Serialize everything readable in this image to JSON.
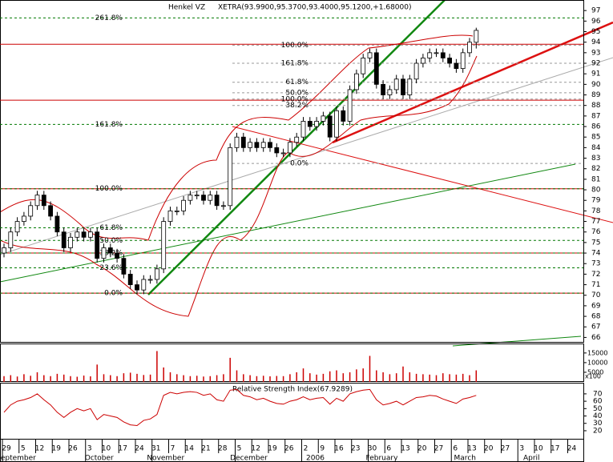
{
  "chart_data": {
    "type": "candlestick",
    "title": "Henkel VZ",
    "subtitle": "XETRA(93.9900,95.3700,93.4000,95.1200,+1.68000)",
    "open": [
      74,
      74.5,
      76,
      77,
      77.5,
      78.5,
      79.5,
      78.5,
      77.5,
      76,
      74.5,
      75.5,
      76,
      75.5,
      76,
      73.5,
      74.5,
      74,
      73.5,
      72,
      71,
      70.5,
      71.5,
      71.5,
      72.5,
      77,
      78,
      78,
      79,
      79.5,
      79.5,
      79,
      79.5,
      78.5,
      78.5,
      84,
      85,
      84,
      84.5,
      84,
      84.5,
      84,
      83.5,
      83.5,
      84.5,
      85,
      86.5,
      86,
      86.5,
      87,
      85,
      87.5,
      86.5,
      89.5,
      91,
      92.5,
      93,
      90,
      89,
      89.5,
      90.5,
      89,
      90.5,
      92,
      92.5,
      93,
      93,
      92.5,
      92,
      91.5,
      93,
      93.99
    ],
    "high": [
      74.9,
      76.4,
      77.4,
      77.9,
      78.9,
      79.9,
      79.9,
      78.9,
      77.9,
      76.4,
      75.9,
      76.4,
      76.4,
      76.4,
      76.4,
      74.9,
      74.9,
      74.4,
      73.9,
      72.4,
      71.4,
      71.9,
      71.9,
      72.9,
      77.4,
      78.4,
      78.4,
      79.4,
      79.9,
      79.9,
      79.9,
      79.9,
      79.9,
      78.9,
      84.4,
      85.4,
      85.4,
      84.9,
      84.9,
      84.9,
      84.9,
      84.4,
      83.9,
      84.9,
      85.4,
      86.9,
      86.9,
      86.9,
      87.4,
      87.4,
      87.9,
      87.9,
      89.9,
      91.4,
      92.9,
      93.4,
      93.4,
      90.4,
      89.9,
      90.9,
      90.9,
      90.9,
      92.4,
      92.9,
      93.4,
      93.4,
      93.4,
      92.9,
      92.4,
      93.4,
      94.4,
      95.37
    ],
    "low": [
      73.6,
      74.1,
      75.6,
      76.6,
      77.1,
      78.1,
      78.1,
      77.1,
      75.6,
      74.1,
      74.1,
      75.1,
      75.1,
      75.1,
      73.1,
      73.1,
      73.6,
      73.1,
      71.6,
      70.6,
      70.1,
      70.1,
      71.1,
      71.1,
      72.1,
      76.6,
      77.6,
      77.6,
      78.6,
      79.1,
      78.6,
      78.6,
      78.1,
      78.1,
      78.1,
      83.6,
      83.6,
      83.6,
      83.6,
      83.6,
      83.6,
      83.1,
      83.1,
      83.1,
      84.1,
      84.6,
      85.6,
      85.6,
      86.1,
      84.6,
      84.6,
      86.1,
      86.1,
      89.1,
      90.6,
      92.1,
      89.6,
      88.6,
      88.6,
      89.1,
      88.6,
      88.6,
      90.1,
      91.6,
      92.1,
      92.6,
      92.1,
      91.6,
      91.1,
      91.1,
      92.6,
      93.4
    ],
    "close": [
      74.5,
      76,
      77,
      77.5,
      78.5,
      79.5,
      78.5,
      77.5,
      76,
      74.5,
      75.5,
      76,
      75.5,
      76,
      73.5,
      74.5,
      74,
      73.5,
      72,
      71,
      70.5,
      71.5,
      71.5,
      72.5,
      77,
      78,
      78,
      79,
      79.5,
      79.5,
      79,
      79.5,
      78.5,
      78.5,
      84,
      85,
      84,
      84.5,
      84,
      84.5,
      84,
      83.5,
      83.5,
      84.5,
      85,
      86.5,
      86,
      86.5,
      87,
      85,
      87.5,
      86.5,
      89.5,
      91,
      92.5,
      93,
      90,
      89,
      89.5,
      90.5,
      89,
      90.5,
      92,
      92.5,
      93,
      93,
      92.5,
      92,
      91.5,
      93,
      94,
      95.12
    ],
    "ylim": [
      65.5,
      98
    ],
    "yticks": [
      66,
      67,
      68,
      69,
      70,
      71,
      72,
      73,
      74,
      75,
      76,
      77,
      78,
      79,
      80,
      81,
      82,
      83,
      84,
      85,
      86,
      87,
      88,
      89,
      90,
      91,
      92,
      93,
      94,
      95,
      96,
      97
    ],
    "fib_left": [
      {
        "label": "0.0%",
        "value": 70.2
      },
      {
        "label": "23.6%",
        "value": 72.6
      },
      {
        "label": "38.2%",
        "value": 74
      },
      {
        "label": "50.0%",
        "value": 75.2
      },
      {
        "label": "61.8%",
        "value": 76.4
      },
      {
        "label": "100.0%",
        "value": 80.1
      },
      {
        "label": "161.8%",
        "value": 86.2
      },
      {
        "label": "261.8%",
        "value": 96.3
      }
    ],
    "fib_right": [
      {
        "label": "0.0%",
        "value": 82.5
      },
      {
        "label": "38.2%",
        "value": 88
      },
      {
        "label": "50.0%",
        "value": 89.2
      },
      {
        "label": "61.8%",
        "value": 90.2
      },
      {
        "label": "100.0%",
        "value": 88.6
      },
      {
        "label": "161.8%",
        "value": 92
      },
      {
        "label": "100.0%",
        "value": 93.7
      }
    ],
    "support_lines": [
      93.8,
      88.5,
      80.1,
      74,
      70.2
    ],
    "volume": {
      "values": [
        3000,
        3500,
        2800,
        4000,
        3200,
        5000,
        3500,
        3000,
        4200,
        3800,
        3000,
        2700,
        3300,
        2900,
        9000,
        4000,
        3500,
        3000,
        4500,
        4800,
        4200,
        3600,
        3800,
        16000,
        7500,
        5000,
        4000,
        3500,
        3000,
        3200,
        2800,
        3000,
        3500,
        4000,
        12500,
        6000,
        4000,
        3500,
        3000,
        3200,
        2900,
        3100,
        3000,
        4000,
        5000,
        7000,
        4500,
        3800,
        4200,
        5500,
        6000,
        4500,
        5000,
        6500,
        7000,
        13500,
        6000,
        5000,
        4000,
        4500,
        8000,
        5000,
        4200,
        4000,
        3800,
        3500,
        4500,
        4000,
        3800,
        4200,
        3500,
        6000
      ],
      "ylim": [
        0,
        19500
      ],
      "yticks": [
        5000,
        10000,
        15000
      ],
      "unit": "x100",
      "color": "#cc0000"
    },
    "rsi": {
      "title": "Relative Strength Index(67.9289)",
      "values": [
        45,
        55,
        60,
        62,
        65,
        70,
        62,
        55,
        45,
        38,
        45,
        50,
        47,
        50,
        35,
        42,
        40,
        38,
        32,
        28,
        27,
        34,
        36,
        42,
        68,
        72,
        70,
        72,
        73,
        72,
        68,
        70,
        62,
        60,
        75,
        76,
        68,
        66,
        62,
        64,
        60,
        57,
        56,
        60,
        62,
        66,
        62,
        64,
        65,
        56,
        64,
        60,
        70,
        73,
        75,
        76,
        62,
        55,
        57,
        60,
        55,
        60,
        65,
        66,
        68,
        67,
        63,
        60,
        57,
        63,
        65,
        67.9289
      ],
      "ylim": [
        8,
        84
      ],
      "yticks": [
        20,
        30,
        40,
        50,
        60,
        70
      ],
      "color": "#cc0000"
    },
    "xticks": [
      {
        "label": "29",
        "month": "September"
      },
      {
        "label": "5"
      },
      {
        "label": "12"
      },
      {
        "label": "19"
      },
      {
        "label": "26"
      },
      {
        "label": "3",
        "month": "October"
      },
      {
        "label": "10"
      },
      {
        "label": "17"
      },
      {
        "label": "24"
      },
      {
        "label": "31",
        "month": "November"
      },
      {
        "label": "7"
      },
      {
        "label": "14"
      },
      {
        "label": "21"
      },
      {
        "label": "28"
      },
      {
        "label": "5",
        "month": "December"
      },
      {
        "label": "12"
      },
      {
        "label": "19"
      },
      {
        "label": "26"
      },
      {
        "label": "2",
        "month": "2006"
      },
      {
        "label": "9"
      },
      {
        "label": "16"
      },
      {
        "label": "23"
      },
      {
        "label": "30",
        "month": "February"
      },
      {
        "label": "6"
      },
      {
        "label": "13"
      },
      {
        "label": "20"
      },
      {
        "label": "27"
      },
      {
        "label": "6",
        "month": "March"
      },
      {
        "label": "13"
      },
      {
        "label": "20"
      },
      {
        "label": "27"
      },
      {
        "label": "3",
        "month": "April"
      },
      {
        "label": "10"
      },
      {
        "label": "17"
      },
      {
        "label": "24"
      }
    ],
    "up_color": "#ffffff",
    "down_color": "#000000",
    "level_color": "#cc0000",
    "fib_color": "#007700"
  }
}
